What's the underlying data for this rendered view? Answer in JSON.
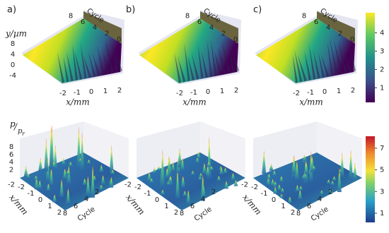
{
  "figure": {
    "top_row": {
      "y_label": "y/µm",
      "x_label": "x/mm",
      "cycle_label": "Cycle",
      "panels": [
        {
          "label": "a)",
          "yticks": [
            8,
            4,
            0,
            -4
          ],
          "xticks": [
            -2,
            -1,
            0,
            1,
            2
          ],
          "cycle_ticks": [
            8,
            6,
            4,
            2,
            0
          ]
        },
        {
          "label": "b)",
          "xticks": [
            -2,
            -1,
            0,
            1,
            2
          ],
          "cycle_ticks": [
            8,
            6,
            4,
            2,
            0
          ]
        },
        {
          "label": "c)",
          "xticks": [
            -2,
            -1,
            0,
            1,
            2
          ],
          "cycle_ticks": [
            8,
            6,
            4,
            2,
            0
          ]
        }
      ],
      "colorbar": {
        "clim": [
          0.2,
          5.1
        ],
        "ticks": [
          4,
          3,
          2,
          1
        ]
      }
    },
    "bottom_row": {
      "p_label": "p",
      "p_ref_label": "p",
      "p_ref_sub": "r",
      "x_label": "x/mm",
      "cycle_label": "Cycle",
      "panels": [
        {
          "yticks": [
            8,
            6,
            4,
            2,
            -2
          ],
          "xticks": [
            -2,
            -1,
            0,
            1,
            2
          ],
          "cycle_ticks": [
            8,
            6,
            4,
            2
          ]
        },
        {
          "yticks": [
            -2
          ],
          "xticks": [
            -2,
            -1,
            0,
            1,
            2
          ],
          "cycle_ticks": [
            8,
            6,
            4,
            2
          ]
        },
        {
          "yticks": [
            -2
          ],
          "xticks": [
            -2,
            -1,
            0,
            1,
            2
          ],
          "cycle_ticks": [
            8,
            6,
            4,
            2
          ]
        }
      ],
      "colorbar": {
        "clim": [
          0.15,
          8.1
        ],
        "ticks": [
          7,
          5,
          3,
          1
        ]
      }
    }
  }
}
